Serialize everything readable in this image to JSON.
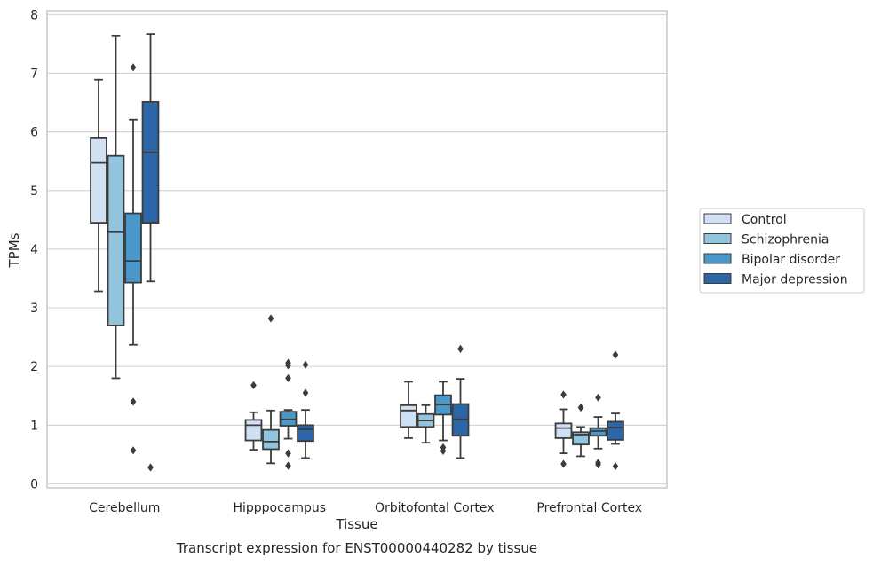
{
  "chart_data": {
    "type": "box",
    "title": "",
    "caption": "Transcript expression for ENST00000440282 by tissue",
    "xlabel": "Tissue",
    "ylabel": "TPMs",
    "ylim": [
      -0.08,
      8.05
    ],
    "yticks": [
      0,
      1,
      2,
      3,
      4,
      5,
      6,
      7,
      8
    ],
    "grid": "horizontal",
    "legend_position": "right",
    "categories": [
      "Cerebellum",
      "Hipppocampus",
      "Orbitofontal Cortex",
      "Prefrontal Cortex"
    ],
    "series": [
      {
        "name": "Control",
        "color": "#cfe1f2",
        "boxes": [
          {
            "whislo": 3.28,
            "q1": 4.45,
            "med": 5.47,
            "q3": 5.89,
            "whishi": 6.89,
            "fliers": []
          },
          {
            "whislo": 0.58,
            "q1": 0.74,
            "med": 1.0,
            "q3": 1.09,
            "whishi": 1.22,
            "fliers": [
              1.68
            ]
          },
          {
            "whislo": 0.78,
            "q1": 0.97,
            "med": 1.25,
            "q3": 1.34,
            "whishi": 1.74,
            "fliers": []
          },
          {
            "whislo": 0.52,
            "q1": 0.78,
            "med": 0.95,
            "q3": 1.03,
            "whishi": 1.27,
            "fliers": [
              1.52,
              0.34
            ]
          }
        ]
      },
      {
        "name": "Schizophrenia",
        "color": "#93c4de",
        "boxes": [
          {
            "whislo": 1.8,
            "q1": 2.7,
            "med": 4.29,
            "q3": 5.59,
            "whishi": 7.63,
            "fliers": []
          },
          {
            "whislo": 0.35,
            "q1": 0.59,
            "med": 0.72,
            "q3": 0.92,
            "whishi": 1.25,
            "fliers": [
              2.82
            ]
          },
          {
            "whislo": 0.7,
            "q1": 0.97,
            "med": 1.08,
            "q3": 1.19,
            "whishi": 1.34,
            "fliers": []
          },
          {
            "whislo": 0.47,
            "q1": 0.67,
            "med": 0.84,
            "q3": 0.88,
            "whishi": 0.97,
            "fliers": [
              1.3
            ]
          }
        ]
      },
      {
        "name": "Bipolar disorder",
        "color": "#4a98c9",
        "boxes": [
          {
            "whislo": 2.37,
            "q1": 3.43,
            "med": 3.8,
            "q3": 4.61,
            "whishi": 6.21,
            "fliers": [
              7.1,
              1.4,
              0.57
            ]
          },
          {
            "whislo": 0.77,
            "q1": 0.99,
            "med": 1.1,
            "q3": 1.23,
            "whishi": 1.26,
            "fliers": [
              2.06,
              2.02,
              1.8,
              0.52,
              0.31
            ]
          },
          {
            "whislo": 0.74,
            "q1": 1.18,
            "med": 1.35,
            "q3": 1.51,
            "whishi": 1.74,
            "fliers": [
              0.62,
              0.56
            ]
          },
          {
            "whislo": 0.6,
            "q1": 0.82,
            "med": 0.9,
            "q3": 0.95,
            "whishi": 1.14,
            "fliers": [
              1.47,
              0.36,
              0.33
            ]
          }
        ]
      },
      {
        "name": "Major depression",
        "color": "#2a66a8",
        "boxes": [
          {
            "whislo": 3.45,
            "q1": 4.45,
            "med": 5.65,
            "q3": 6.51,
            "whishi": 7.67,
            "fliers": [
              0.28
            ]
          },
          {
            "whislo": 0.44,
            "q1": 0.73,
            "med": 0.93,
            "q3": 1.0,
            "whishi": 1.26,
            "fliers": [
              2.03,
              1.55
            ]
          },
          {
            "whislo": 0.44,
            "q1": 0.82,
            "med": 1.1,
            "q3": 1.36,
            "whishi": 1.79,
            "fliers": [
              2.3
            ]
          },
          {
            "whislo": 0.68,
            "q1": 0.75,
            "med": 0.96,
            "q3": 1.06,
            "whishi": 1.2,
            "fliers": [
              2.2,
              0.3
            ]
          }
        ]
      }
    ],
    "colors": {
      "grid": "#d5d5d5",
      "spine": "#cccccc",
      "edge": "#3c3c3c",
      "text": "#262626"
    }
  }
}
